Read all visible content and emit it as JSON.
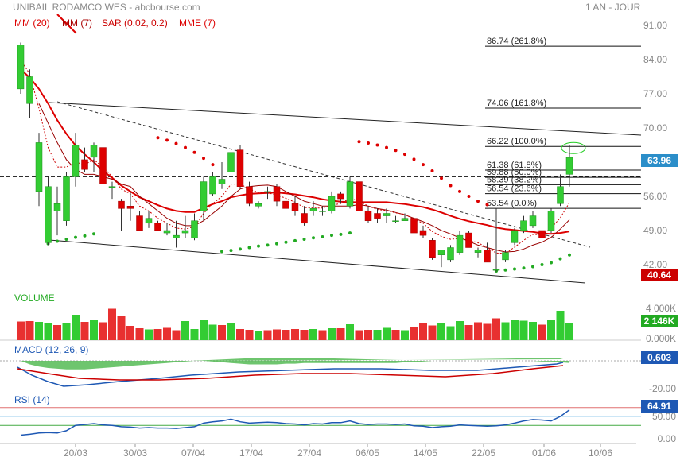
{
  "header": {
    "title": "UNIBAIL RODAMCO WES - abcbourse.com",
    "period": "1 AN - JOUR"
  },
  "indicators": [
    {
      "label": "MM (20)",
      "color": "#dd0000"
    },
    {
      "label": "MM (7)",
      "color": "#aa0000"
    },
    {
      "label": "SAR (0.02, 0.2)",
      "color": "#cc0000"
    },
    {
      "label": "MME (7)",
      "color": "#dd0000"
    }
  ],
  "badges": {
    "price": "63.96",
    "price_color": "#2b8ec9",
    "low": "40.64",
    "low_color": "#cc0000",
    "volume": "2 146K",
    "volume_color": "#22aa22",
    "macd": "0.603",
    "macd_color": "#1e58b4",
    "rsi": "64.91",
    "rsi_color": "#1e58b4"
  },
  "panels": {
    "volume_label": "VOLUME",
    "macd_label": "MACD (12, 26, 9)",
    "rsi_label": "RSI (14)"
  },
  "chart_data": {
    "type": "candlestick",
    "price_axis": {
      "ticks": [
        "91.00",
        "84.00",
        "77.00",
        "70.00",
        "63.00",
        "56.00",
        "49.00",
        "42.00"
      ],
      "ylim": [
        37.5,
        93
      ]
    },
    "volume_axis": {
      "ticks": [
        "4 000K",
        "0.000K"
      ]
    },
    "macd_axis": {
      "ticks": [
        "0.000",
        "-20.00"
      ]
    },
    "rsi_axis": {
      "ticks": [
        "50.00",
        "0.00"
      ],
      "levels": [
        30,
        70
      ]
    },
    "x_labels": [
      "20/03",
      "30/03",
      "07/04",
      "17/04",
      "27/04",
      "06/05",
      "14/05",
      "22/05",
      "01/06",
      "10/06"
    ],
    "candles": [
      {
        "o": 78.0,
        "h": 87.5,
        "l": 77.0,
        "c": 87.0
      },
      {
        "o": 75.0,
        "h": 82.0,
        "l": 72.0,
        "c": 80.5
      },
      {
        "o": 57.0,
        "h": 69.0,
        "l": 54.0,
        "c": 67.0
      },
      {
        "o": 46.5,
        "h": 60.0,
        "l": 46.0,
        "c": 58.0
      },
      {
        "o": 53.0,
        "h": 58.0,
        "l": 48.0,
        "c": 54.5
      },
      {
        "o": 51.0,
        "h": 61.0,
        "l": 50.0,
        "c": 60.0
      },
      {
        "o": 60.0,
        "h": 69.0,
        "l": 58.0,
        "c": 66.5
      },
      {
        "o": 63.5,
        "h": 66.0,
        "l": 61.0,
        "c": 61.5
      },
      {
        "o": 64.0,
        "h": 67.0,
        "l": 61.0,
        "c": 66.5
      },
      {
        "o": 66.0,
        "h": 68.0,
        "l": 57.0,
        "c": 58.5
      },
      {
        "o": 58.0,
        "h": 59.0,
        "l": 55.5,
        "c": 58.0
      },
      {
        "o": 55.0,
        "h": 55.5,
        "l": 49.0,
        "c": 53.5
      },
      {
        "o": 54.0,
        "h": 57.0,
        "l": 51.0,
        "c": 53.5
      },
      {
        "o": 52.0,
        "h": 53.0,
        "l": 49.0,
        "c": 49.0
      },
      {
        "o": 50.5,
        "h": 53.0,
        "l": 49.5,
        "c": 51.5
      },
      {
        "o": 50.5,
        "h": 51.0,
        "l": 49.0,
        "c": 49.0
      },
      {
        "o": 48.5,
        "h": 50.5,
        "l": 48.0,
        "c": 49.0
      },
      {
        "o": 47.5,
        "h": 51.0,
        "l": 45.5,
        "c": 48.0
      },
      {
        "o": 48.5,
        "h": 52.0,
        "l": 47.5,
        "c": 49.0
      },
      {
        "o": 47.5,
        "h": 52.5,
        "l": 47.0,
        "c": 51.0
      },
      {
        "o": 53.0,
        "h": 60.0,
        "l": 51.0,
        "c": 59.0
      },
      {
        "o": 56.5,
        "h": 61.0,
        "l": 56.0,
        "c": 60.0
      },
      {
        "o": 58.5,
        "h": 63.0,
        "l": 57.5,
        "c": 59.5
      },
      {
        "o": 61.0,
        "h": 66.5,
        "l": 60.0,
        "c": 65.0
      },
      {
        "o": 65.5,
        "h": 66.5,
        "l": 57.5,
        "c": 58.0
      },
      {
        "o": 58.0,
        "h": 59.0,
        "l": 54.0,
        "c": 54.5
      },
      {
        "o": 54.0,
        "h": 55.0,
        "l": 53.5,
        "c": 54.5
      },
      {
        "o": 57.0,
        "h": 58.0,
        "l": 55.5,
        "c": 57.0
      },
      {
        "o": 58.0,
        "h": 58.5,
        "l": 54.0,
        "c": 55.0
      },
      {
        "o": 55.0,
        "h": 57.5,
        "l": 53.0,
        "c": 53.5
      },
      {
        "o": 54.5,
        "h": 56.0,
        "l": 52.0,
        "c": 53.0
      },
      {
        "o": 52.5,
        "h": 54.0,
        "l": 50.0,
        "c": 50.5
      },
      {
        "o": 53.0,
        "h": 55.0,
        "l": 52.0,
        "c": 53.5
      },
      {
        "o": 53.0,
        "h": 54.0,
        "l": 52.0,
        "c": 53.0
      },
      {
        "o": 53.0,
        "h": 57.0,
        "l": 52.5,
        "c": 56.0
      },
      {
        "o": 56.5,
        "h": 57.0,
        "l": 54.5,
        "c": 55.5
      },
      {
        "o": 54.0,
        "h": 60.0,
        "l": 53.5,
        "c": 59.0
      },
      {
        "o": 59.0,
        "h": 60.5,
        "l": 52.0,
        "c": 53.0
      },
      {
        "o": 53.0,
        "h": 54.0,
        "l": 50.5,
        "c": 51.0
      },
      {
        "o": 52.5,
        "h": 53.5,
        "l": 50.5,
        "c": 51.5
      },
      {
        "o": 52.0,
        "h": 53.5,
        "l": 50.5,
        "c": 52.5
      },
      {
        "o": 51.0,
        "h": 52.0,
        "l": 50.5,
        "c": 51.0
      },
      {
        "o": 51.0,
        "h": 52.5,
        "l": 51.0,
        "c": 51.5
      },
      {
        "o": 51.5,
        "h": 53.0,
        "l": 48.0,
        "c": 48.5
      },
      {
        "o": 49.0,
        "h": 50.0,
        "l": 47.5,
        "c": 48.0
      },
      {
        "o": 47.0,
        "h": 47.5,
        "l": 43.0,
        "c": 43.5
      },
      {
        "o": 44.0,
        "h": 45.0,
        "l": 41.5,
        "c": 45.0
      },
      {
        "o": 43.0,
        "h": 46.0,
        "l": 42.5,
        "c": 45.5
      },
      {
        "o": 44.5,
        "h": 49.0,
        "l": 44.0,
        "c": 48.0
      },
      {
        "o": 48.5,
        "h": 49.0,
        "l": 45.5,
        "c": 45.5
      },
      {
        "o": 44.5,
        "h": 45.5,
        "l": 43.5,
        "c": 45.0
      },
      {
        "o": 45.0,
        "h": 46.5,
        "l": 42.5,
        "c": 42.5
      },
      {
        "o": 41.0,
        "h": 53.5,
        "l": 40.6,
        "c": 41.0
      },
      {
        "o": 43.0,
        "h": 45.0,
        "l": 42.5,
        "c": 44.5
      },
      {
        "o": 46.5,
        "h": 49.5,
        "l": 46.0,
        "c": 49.0
      },
      {
        "o": 49.0,
        "h": 52.0,
        "l": 48.5,
        "c": 51.0
      },
      {
        "o": 50.0,
        "h": 53.0,
        "l": 49.5,
        "c": 52.0
      },
      {
        "o": 49.0,
        "h": 51.0,
        "l": 47.5,
        "c": 47.5
      },
      {
        "o": 49.0,
        "h": 53.5,
        "l": 48.5,
        "c": 53.0
      },
      {
        "o": 54.5,
        "h": 60.5,
        "l": 54.0,
        "c": 58.0
      },
      {
        "o": 60.5,
        "h": 66.5,
        "l": 58.0,
        "c": 63.96
      }
    ],
    "sma20": [
      82,
      80.3,
      78,
      75,
      71.6,
      68.8,
      66.4,
      64.6,
      63,
      61.2,
      59.8,
      58.2,
      57,
      55.8,
      55,
      54.2,
      53.5,
      53,
      52.8,
      52.8,
      53.6,
      54.4,
      55,
      55.8,
      56.2,
      56.5,
      56.6,
      56.7,
      56.8,
      56.6,
      56.4,
      56.1,
      55.8,
      55.4,
      55.1,
      54.9,
      54.8,
      54.8,
      54.8,
      54.8,
      54.8,
      54.6,
      54.4,
      54.1,
      53.8,
      53.3,
      52.7,
      52,
      51.4,
      50.9,
      50.5,
      50.1,
      49.6,
      49.3,
      49.1,
      48.9,
      48.7,
      48.4,
      48.3,
      48.5,
      48.8
    ],
    "sma7": [
      null,
      null,
      75,
      71,
      67,
      63.5,
      61.5,
      60.5,
      60.5,
      60,
      59.5,
      58.5,
      58,
      56,
      54.5,
      53,
      51.5,
      50.5,
      50,
      50,
      51,
      52.5,
      54,
      56,
      57.5,
      58,
      58.2,
      58.3,
      58,
      57,
      56,
      55,
      54.5,
      54,
      54,
      54,
      54,
      54.3,
      54,
      53.5,
      53.2,
      52.7,
      52.2,
      51.5,
      50.8,
      50,
      49,
      48.3,
      47.5,
      46.8,
      46,
      45.5,
      45,
      44.6,
      44.7,
      45.2,
      46,
      46.6,
      47.6,
      49.3,
      51.2
    ],
    "ema7": [
      84,
      81,
      74,
      66,
      62,
      62,
      63,
      62.5,
      63.5,
      62,
      60,
      57.5,
      56.5,
      54,
      53,
      51.5,
      50.5,
      49.5,
      49.3,
      49.8,
      52.5,
      54.5,
      56,
      58.5,
      58.5,
      57.5,
      56.8,
      56.7,
      56.3,
      55.6,
      54.8,
      53.7,
      53.6,
      53.6,
      54.2,
      54.5,
      55.6,
      55,
      54,
      53.3,
      53.1,
      52.6,
      52.3,
      51.3,
      50.5,
      48.8,
      47.8,
      47.2,
      47.4,
      47,
      46.5,
      45.5,
      44.4,
      44.3,
      45.6,
      47,
      48.2,
      48.1,
      49.5,
      51.6,
      54.7
    ],
    "sar": [
      null,
      null,
      null,
      null,
      null,
      null,
      null,
      47,
      47.5,
      48,
      48.5,
      49,
      49.5,
      50,
      null,
      null,
      null,
      null,
      null,
      null,
      null,
      null,
      null,
      null,
      null,
      null,
      null,
      null,
      46,
      46.5,
      47,
      47.5,
      48,
      48.5,
      49,
      49.5,
      50,
      null,
      null,
      null,
      null,
      null,
      null,
      null,
      null,
      null,
      null,
      null,
      null,
      null,
      null,
      null,
      null,
      null,
      null,
      null,
      null,
      null,
      null,
      null,
      null
    ],
    "sar_high": [
      null,
      null,
      null,
      null,
      null,
      null,
      null,
      null,
      null,
      null,
      null,
      null,
      null,
      null,
      null,
      null,
      null,
      null,
      null,
      null,
      null,
      null,
      null,
      null,
      null,
      null,
      null,
      null,
      null,
      null,
      null,
      null,
      null,
      null,
      null,
      null,
      null,
      null,
      null,
      null,
      null,
      null,
      null,
      null,
      null,
      null,
      null,
      null,
      null,
      null,
      null,
      null,
      null,
      null,
      null,
      null,
      null,
      null,
      null,
      null,
      null
    ],
    "sar_points": [
      {
        "i": 15,
        "v": 68.0
      },
      {
        "i": 16,
        "v": 67.5
      },
      {
        "i": 17,
        "v": 66.8
      },
      {
        "i": 18,
        "v": 66.0
      },
      {
        "i": 19,
        "v": 65.0
      },
      {
        "i": 20,
        "v": 63.8
      },
      {
        "i": 21,
        "v": 62.5
      },
      {
        "i": 3,
        "v": 46.3
      },
      {
        "i": 4,
        "v": 46.8
      },
      {
        "i": 5,
        "v": 47.2
      },
      {
        "i": 6,
        "v": 47.6
      },
      {
        "i": 7,
        "v": 47.9
      },
      {
        "i": 8,
        "v": 48.3
      },
      {
        "i": 22,
        "v": 44.7
      },
      {
        "i": 23,
        "v": 44.9
      },
      {
        "i": 24,
        "v": 45.2
      },
      {
        "i": 25,
        "v": 45.5
      },
      {
        "i": 26,
        "v": 45.8
      },
      {
        "i": 27,
        "v": 46.0
      },
      {
        "i": 28,
        "v": 46.3
      },
      {
        "i": 29,
        "v": 46.6
      },
      {
        "i": 30,
        "v": 46.9
      },
      {
        "i": 31,
        "v": 47.2
      },
      {
        "i": 32,
        "v": 47.5
      },
      {
        "i": 33,
        "v": 47.7
      },
      {
        "i": 34,
        "v": 48.0
      },
      {
        "i": 35,
        "v": 48.2
      },
      {
        "i": 36,
        "v": 48.5
      },
      {
        "i": 37,
        "v": 67.2
      },
      {
        "i": 38,
        "v": 66.9
      },
      {
        "i": 39,
        "v": 66.5
      },
      {
        "i": 40,
        "v": 66.0
      },
      {
        "i": 41,
        "v": 65.4
      },
      {
        "i": 42,
        "v": 64.6
      },
      {
        "i": 43,
        "v": 63.6
      },
      {
        "i": 44,
        "v": 62.5
      },
      {
        "i": 45,
        "v": 61.2
      },
      {
        "i": 46,
        "v": 59.7
      },
      {
        "i": 47,
        "v": 58.2
      },
      {
        "i": 48,
        "v": 57.0
      },
      {
        "i": 49,
        "v": 56.0
      },
      {
        "i": 50,
        "v": 55.0
      },
      {
        "i": 51,
        "v": 54.3
      },
      {
        "i": 52,
        "v": 40.7
      },
      {
        "i": 53,
        "v": 40.9
      },
      {
        "i": 54,
        "v": 41.1
      },
      {
        "i": 55,
        "v": 41.3
      },
      {
        "i": 56,
        "v": 41.6
      },
      {
        "i": 57,
        "v": 42.0
      },
      {
        "i": 58,
        "v": 42.4
      },
      {
        "i": 59,
        "v": 43.2
      },
      {
        "i": 60,
        "v": 44.0
      }
    ],
    "fibonacci": [
      {
        "label": "86.74  (261.8%)",
        "v": 86.74
      },
      {
        "label": "74.06  (161.8%)",
        "v": 74.06
      },
      {
        "label": "66.22  (100.0%)",
        "v": 66.22
      },
      {
        "label": "61.38  (61.8%)",
        "v": 61.38
      },
      {
        "label": "59.88  (50.0%)",
        "v": 59.88
      },
      {
        "label": "58.39  (38.2%)",
        "v": 58.39
      },
      {
        "label": "56.54  (23.6%)",
        "v": 56.54
      },
      {
        "label": "53.54  (0.0%)",
        "v": 53.54
      }
    ],
    "reference_line": 60.0,
    "volume": [
      2350,
      2400,
      2300,
      2150,
      1900,
      2200,
      3200,
      2300,
      2500,
      2250,
      3950,
      3000,
      1800,
      1500,
      1350,
      1400,
      1550,
      1250,
      2400,
      1400,
      2500,
      1950,
      1900,
      2200,
      1400,
      1300,
      1150,
      1250,
      1350,
      1300,
      1400,
      1300,
      1400,
      1250,
      1500,
      1500,
      2000,
      1250,
      1300,
      1300,
      1550,
      1300,
      1250,
      1700,
      2200,
      1850,
      2100,
      1750,
      2400,
      1900,
      2250,
      2050,
      2750,
      2250,
      2600,
      2450,
      2300,
      1950,
      2550,
      3700,
      2146
    ],
    "volume_up": [
      false,
      false,
      true,
      true,
      false,
      true,
      true,
      false,
      true,
      false,
      false,
      false,
      false,
      false,
      true,
      false,
      false,
      false,
      true,
      true,
      true,
      true,
      false,
      true,
      false,
      false,
      true,
      false,
      false,
      false,
      false,
      false,
      true,
      false,
      true,
      false,
      true,
      false,
      false,
      true,
      true,
      false,
      true,
      false,
      false,
      false,
      true,
      true,
      true,
      false,
      false,
      false,
      false,
      true,
      true,
      true,
      true,
      false,
      true,
      true,
      true
    ]
  }
}
